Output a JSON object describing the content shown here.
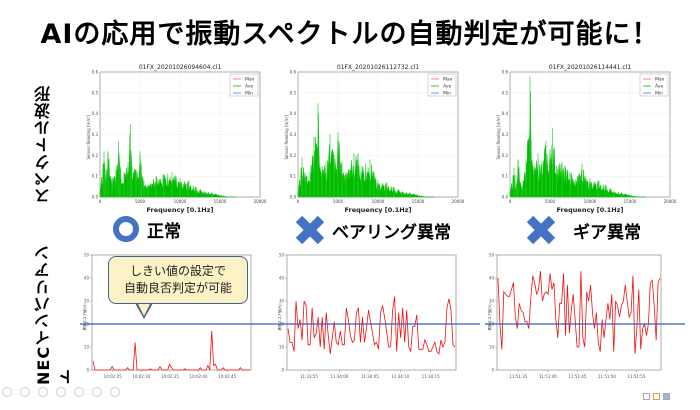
{
  "slide": {
    "title": "AIの応用で振動スペクトルの自動判定が可能に！",
    "row_labels": {
      "spectrum": "スペクトル波形",
      "invariant": "NECインバリアント"
    },
    "callout": {
      "line1": "しきい値の設定で",
      "line2": "自動良否判定が可能"
    },
    "statuses": [
      {
        "label": "正常",
        "icon": "circle-ok-icon"
      },
      {
        "label": "ベアリング異常",
        "icon": "cross-ng-icon"
      },
      {
        "label": "ギア異常",
        "icon": "cross-ng-icon"
      }
    ],
    "colors": {
      "status_icon": "#4472c4",
      "ave": "#00bb00",
      "max": "#ff6666",
      "min": "#6666ff",
      "threshold": "#2e5fbf",
      "score": "#ee1111"
    }
  },
  "chart_data": [
    {
      "type": "area",
      "title": "01FX_20201026094604.cl1",
      "xlabel": "Frequency [0.1Hz]",
      "ylabel": "Sensor Reading [m/s²]",
      "xlim": [
        0,
        20000
      ],
      "ylim": [
        0,
        0.6
      ],
      "xticks": [
        "0",
        "5000",
        "10000",
        "15000",
        "20000"
      ],
      "yticks": [
        "0.0",
        "0.1",
        "0.2",
        "0.3",
        "0.4",
        "0.5",
        "0.6"
      ],
      "legend": [
        "Max",
        "Ave",
        "Min"
      ],
      "x": [
        0,
        500,
        700,
        1000,
        1500,
        2000,
        2300,
        2500,
        3000,
        3500,
        3800,
        4000,
        4500,
        5000,
        5200,
        5500,
        6000,
        7000,
        8000,
        9000,
        10000,
        11000,
        12000,
        13000,
        14000,
        15000,
        16000,
        17000
      ],
      "values": [
        0.02,
        0.22,
        0.08,
        0.22,
        0.09,
        0.13,
        0.27,
        0.15,
        0.12,
        0.17,
        0.35,
        0.15,
        0.13,
        0.22,
        0.16,
        0.08,
        0.06,
        0.1,
        0.11,
        0.12,
        0.09,
        0.08,
        0.05,
        0.03,
        0.02,
        0.01,
        0.0,
        0.0
      ]
    },
    {
      "type": "area",
      "title": "01FX_20201026112732.cl1",
      "xlabel": "Frequency [0.1Hz]",
      "ylabel": "Sensor Reading [m/s²]",
      "xlim": [
        0,
        20000
      ],
      "ylim": [
        0,
        0.6
      ],
      "xticks": [
        "0",
        "5000",
        "10000",
        "15000",
        "20000"
      ],
      "yticks": [
        "0.0",
        "0.1",
        "0.2",
        "0.3",
        "0.4",
        "0.5",
        "0.6"
      ],
      "legend": [
        "Max",
        "Ave",
        "Min"
      ],
      "x": [
        0,
        500,
        1000,
        1500,
        2000,
        2500,
        3000,
        3500,
        4000,
        4500,
        5000,
        5500,
        6000,
        7000,
        7500,
        8000,
        9000,
        9500,
        10000,
        11000,
        12000,
        13000,
        14000,
        15000,
        16000,
        17000
      ],
      "values": [
        0.02,
        0.19,
        0.1,
        0.12,
        0.29,
        0.45,
        0.15,
        0.17,
        0.3,
        0.2,
        0.31,
        0.17,
        0.12,
        0.21,
        0.21,
        0.15,
        0.18,
        0.12,
        0.08,
        0.07,
        0.05,
        0.03,
        0.02,
        0.01,
        0.0,
        0.0
      ]
    },
    {
      "type": "area",
      "title": "01FX_20201026114441.cl1",
      "xlabel": "Frequency [0.1Hz]",
      "ylabel": "Sensor Reading [m/s²]",
      "xlim": [
        0,
        20000
      ],
      "ylim": [
        0,
        0.6
      ],
      "xticks": [
        "0",
        "5000",
        "10000",
        "15000",
        "20000"
      ],
      "yticks": [
        "0.0",
        "0.1",
        "0.2",
        "0.3",
        "0.4",
        "0.5",
        "0.6"
      ],
      "legend": [
        "Max",
        "Ave",
        "Min"
      ],
      "x": [
        0,
        500,
        800,
        1000,
        1500,
        2000,
        2500,
        3000,
        3500,
        4000,
        4500,
        5000,
        5300,
        5800,
        6500,
        7500,
        8500,
        9000,
        9500,
        10000,
        11000,
        12000,
        13000,
        14000,
        15000,
        16000,
        17000
      ],
      "values": [
        0.02,
        0.14,
        0.06,
        0.18,
        0.05,
        0.18,
        0.58,
        0.15,
        0.21,
        0.17,
        0.27,
        0.23,
        0.33,
        0.15,
        0.17,
        0.12,
        0.1,
        0.16,
        0.09,
        0.09,
        0.08,
        0.06,
        0.03,
        0.02,
        0.01,
        0.0,
        0.0
      ]
    },
    {
      "type": "line",
      "title": "",
      "ylabel": "異常スコア値(%)",
      "ylim": [
        0,
        50
      ],
      "yticks": [
        "0",
        "10",
        "20",
        "30",
        "40",
        "50"
      ],
      "threshold": 20,
      "xticks": [
        "10:02:25",
        "10:02:30",
        "10:02:35",
        "10:02:40",
        "10:02:45"
      ],
      "values": [
        4,
        0,
        0,
        0,
        0,
        0,
        0,
        0,
        0,
        0,
        1.5,
        0,
        0,
        0,
        0,
        0,
        0,
        0,
        1,
        0,
        0,
        0,
        12,
        0,
        0,
        0,
        0,
        0,
        0,
        0,
        0.5,
        0,
        0,
        0,
        0,
        1.5,
        0,
        0,
        0,
        0,
        2.5,
        1,
        0,
        0,
        0,
        0,
        0,
        0,
        0.5,
        0,
        0,
        0,
        0,
        0,
        0,
        0,
        1,
        0,
        0,
        0,
        2,
        0,
        17,
        2,
        2.5,
        0,
        0,
        0,
        1,
        0,
        0,
        0,
        0,
        0,
        0,
        0,
        0,
        1,
        0,
        0,
        0,
        0,
        0
      ]
    },
    {
      "type": "line",
      "title": "",
      "ylabel": "異常スコア値(%)",
      "ylim": [
        0,
        50
      ],
      "yticks": [
        "0",
        "10",
        "20",
        "30",
        "40",
        "50"
      ],
      "threshold": 20,
      "xticks": [
        "11:33:55",
        "11:34:00",
        "11:34:05",
        "11:34:10",
        "11:34:15"
      ],
      "values": [
        18,
        12,
        12,
        8,
        30,
        18,
        22,
        13,
        30,
        28,
        11,
        11,
        27,
        14,
        16,
        23,
        10,
        23,
        9,
        25,
        15,
        7,
        14,
        21,
        12,
        11,
        17,
        11,
        11,
        27,
        22,
        15,
        12,
        13,
        25,
        27,
        12,
        23,
        12,
        18,
        26,
        21,
        16,
        11,
        12,
        9,
        25,
        28,
        23,
        17,
        10,
        10,
        26,
        32,
        8,
        25,
        14,
        27,
        12,
        26,
        10,
        8,
        19,
        19,
        24,
        9,
        9,
        9,
        13,
        11,
        8,
        8,
        10,
        12,
        8,
        7,
        13,
        10,
        12,
        27,
        31,
        26,
        11,
        10
      ]
    },
    {
      "type": "line",
      "title": "",
      "ylabel": "異常スコア値(%)",
      "ylim": [
        0,
        50
      ],
      "yticks": [
        "0",
        "10",
        "20",
        "30",
        "40",
        "50"
      ],
      "threshold": 20,
      "xticks": [
        "11:51:35",
        "11:51:40",
        "11:51:45",
        "11:51:50",
        "11:51:55"
      ],
      "values": [
        40,
        20,
        9,
        34,
        33,
        32,
        32,
        35,
        38,
        23,
        18,
        29,
        26,
        25,
        21,
        21,
        18,
        31,
        41,
        38,
        33,
        35,
        43,
        30,
        33,
        34,
        33,
        42,
        35,
        38,
        22,
        14,
        29,
        29,
        42,
        15,
        37,
        16,
        26,
        33,
        22,
        10,
        10,
        43,
        14,
        10,
        34,
        30,
        37,
        25,
        18,
        25,
        12,
        8,
        22,
        14,
        22,
        29,
        22,
        33,
        8,
        30,
        28,
        23,
        28,
        30,
        37,
        30,
        23,
        25,
        41,
        7,
        18,
        35,
        9,
        18,
        20,
        15,
        20,
        38,
        39,
        28,
        13,
        38,
        40
      ]
    }
  ]
}
